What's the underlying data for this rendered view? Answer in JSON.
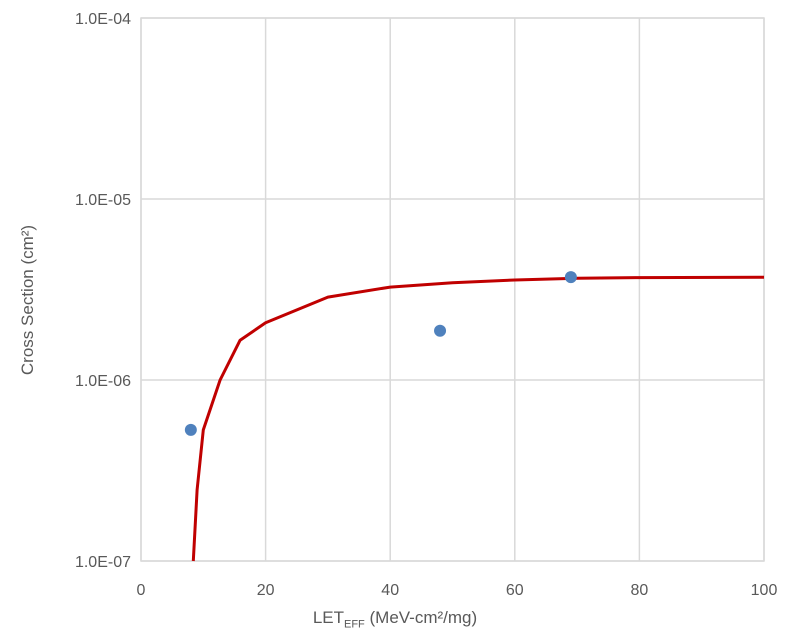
{
  "chart_data": {
    "type": "scatter",
    "title": "",
    "xlabel": {
      "main": "LET",
      "sub": "EFF",
      "rest": " (MeV-cm²/mg)"
    },
    "ylabel": "Cross Section (cm²)",
    "xlim": [
      0,
      100
    ],
    "ylim": [
      1e-07,
      0.0001
    ],
    "yscale": "log",
    "grid": true,
    "x_ticks": [
      "0",
      "20",
      "40",
      "60",
      "80",
      "100"
    ],
    "y_ticks": [
      "1.0E-07",
      "1.0E-06",
      "1.0E-05",
      "1.0E-04"
    ],
    "series": [
      {
        "type": "scatter",
        "color": "#4F81BD",
        "x": [
          8,
          48,
          69
        ],
        "y": [
          5.3e-07,
          1.87e-06,
          3.7e-06
        ]
      },
      {
        "type": "line",
        "color": "#C00000",
        "x": [
          8.4,
          9,
          10,
          12.7,
          15.9,
          20,
          30,
          40,
          50,
          60,
          70,
          80,
          100
        ],
        "y": [
          1e-07,
          2.47e-07,
          5.3e-07,
          1e-06,
          1.66e-06,
          2.07e-06,
          2.87e-06,
          3.26e-06,
          3.45e-06,
          3.57e-06,
          3.65e-06,
          3.68e-06,
          3.7e-06
        ]
      }
    ]
  }
}
